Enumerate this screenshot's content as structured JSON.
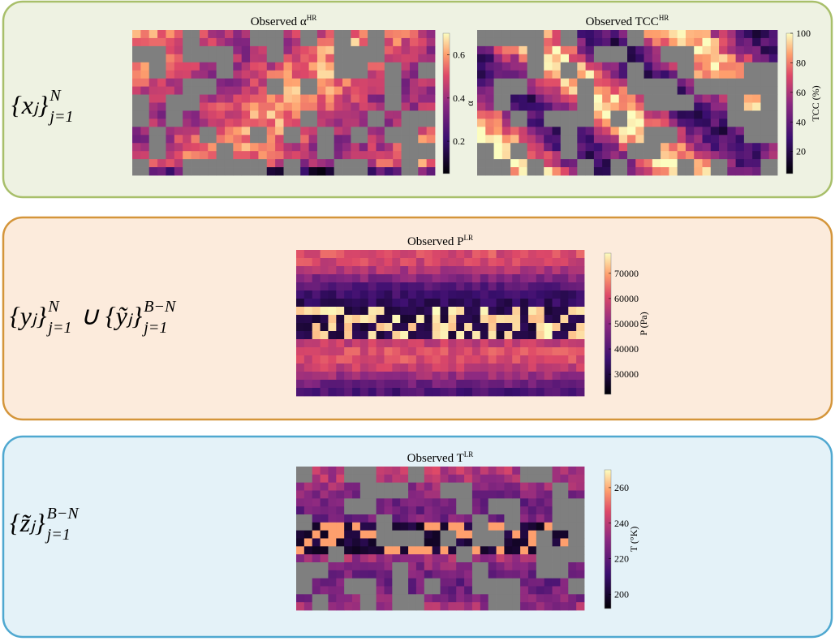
{
  "panels": [
    {
      "label": {
        "groups": [
          {
            "base": "{xⱼ}",
            "sub": "j=1",
            "sup": "N"
          }
        ]
      },
      "maps": [
        {
          "title": {
            "text": "Observed  α",
            "sup": "HR"
          },
          "colorbar": {
            "label": "α",
            "lim": [
              0.05,
              0.7
            ],
            "ticks": [
              0.2,
              0.4,
              0.6
            ]
          }
        },
        {
          "title": {
            "text": "Observed  TCC",
            "sup": "HR"
          },
          "colorbar": {
            "label": "TCC (%)",
            "lim": [
              5,
              100
            ],
            "ticks": [
              20,
              40,
              60,
              80,
              100
            ]
          }
        }
      ]
    },
    {
      "label": {
        "groups": [
          {
            "base": "{yⱼ}",
            "sub": "j=1",
            "sup": "N"
          },
          {
            "base": "∪ {ỹⱼ}",
            "sub": "j=1",
            "sup": "B−N"
          }
        ]
      },
      "maps": [
        {
          "title": {
            "text": "Observed  P",
            "sup": "LR"
          },
          "colorbar": {
            "label": "P (Pa)",
            "lim": [
              22000,
              78000
            ],
            "ticks": [
              30000,
              40000,
              50000,
              60000,
              70000
            ]
          }
        }
      ]
    },
    {
      "label": {
        "groups": [
          {
            "base": "{z̃ⱼ}",
            "sub": "j=1",
            "sup": "B−N"
          }
        ]
      },
      "maps": [
        {
          "title": {
            "text": "Observed  T",
            "sup": "LR"
          },
          "colorbar": {
            "label": "T (°K)",
            "lim": [
              192,
              270
            ],
            "ticks": [
              200,
              220,
              240,
              260
            ]
          }
        }
      ]
    }
  ]
}
